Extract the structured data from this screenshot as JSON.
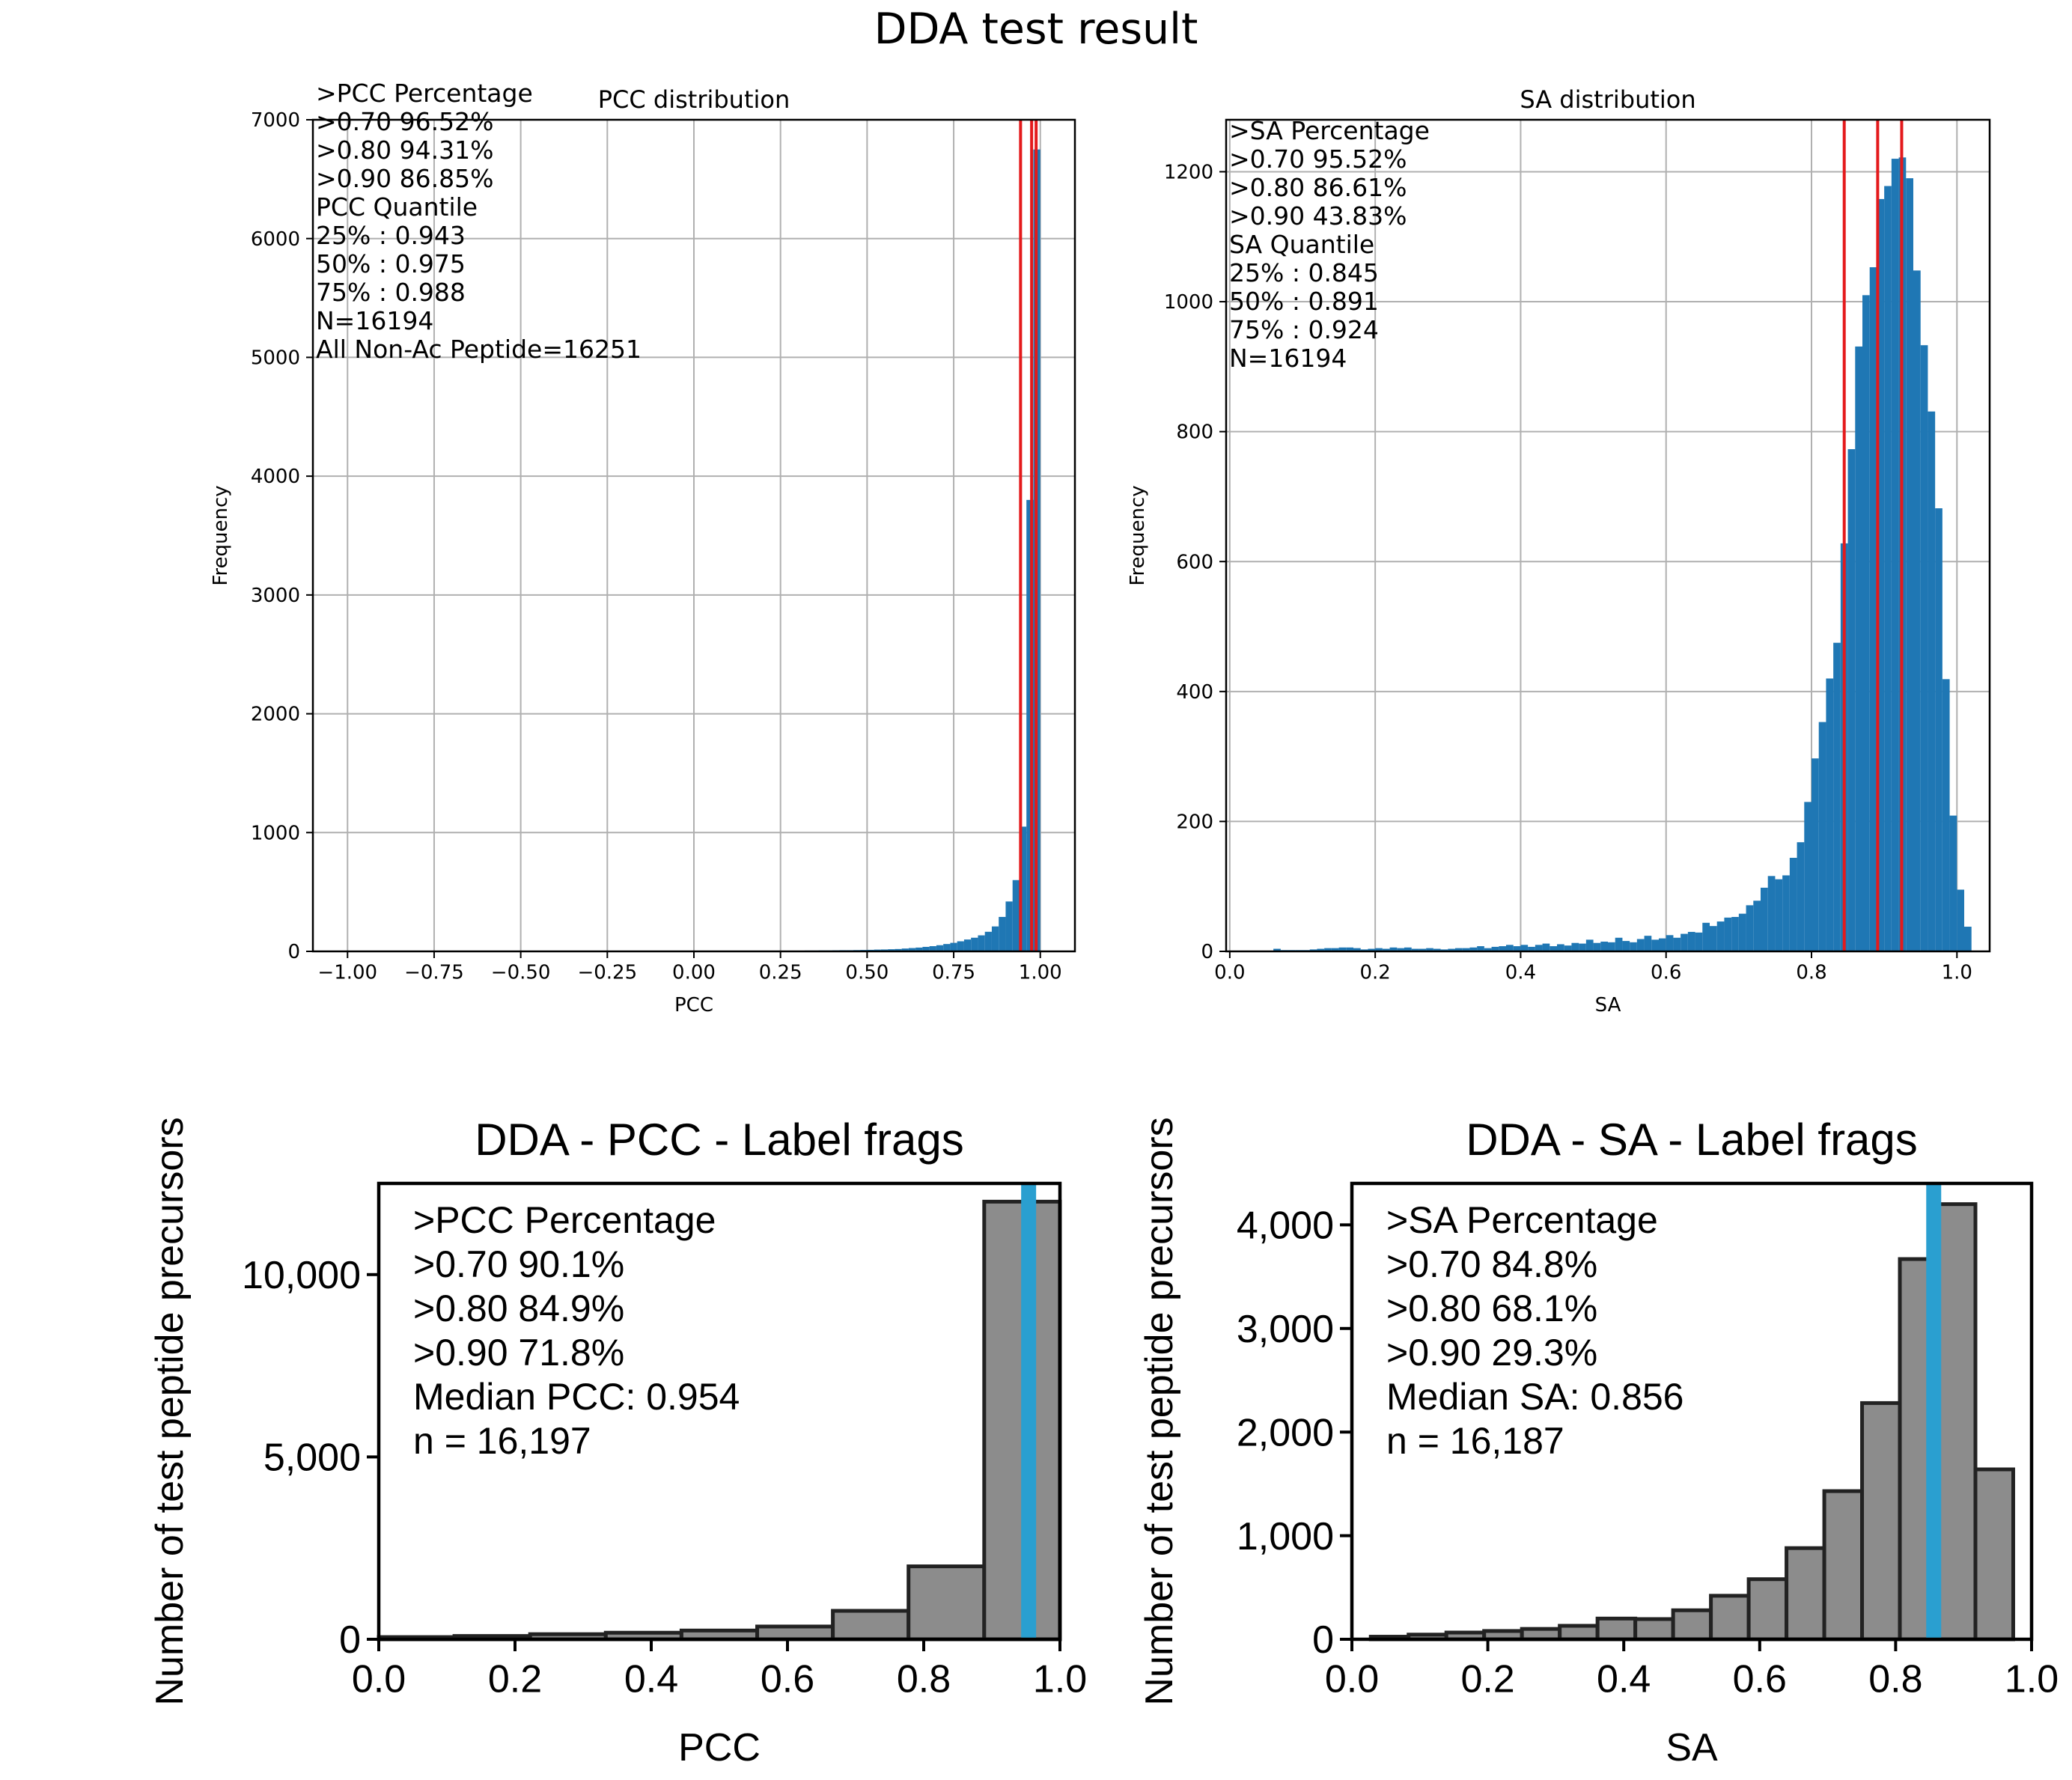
{
  "suptitle": "DDA test result",
  "colors": {
    "hist_fill": "#1f77b4",
    "quantile_line": "#e41a1c",
    "gray_fill": "#8c8c8c",
    "gray_edge": "#222222",
    "median_line": "#2a9fd0",
    "grid": "#b0b0b0"
  },
  "chart_data": [
    {
      "id": "pcc_top",
      "type": "bar",
      "title": "PCC distribution",
      "xlabel": "PCC",
      "ylabel": "Frequency",
      "xlim": [
        -1.1,
        1.1
      ],
      "ylim": [
        0,
        7000
      ],
      "xticks": [
        -1.0,
        -0.75,
        -0.5,
        -0.25,
        0.0,
        0.25,
        0.5,
        0.75,
        1.0
      ],
      "xtick_labels": [
        "−1.00",
        "−0.75",
        "−0.50",
        "−0.25",
        "0.00",
        "0.25",
        "0.50",
        "0.75",
        "1.00"
      ],
      "yticks": [
        0,
        1000,
        2000,
        3000,
        4000,
        5000,
        6000,
        7000
      ],
      "ytick_labels": [
        "0",
        "1000",
        "2000",
        "3000",
        "4000",
        "5000",
        "6000",
        "7000"
      ],
      "grid": true,
      "bins": {
        "start": 0.0,
        "width": 0.02,
        "values": [
          2,
          2,
          2,
          3,
          3,
          3,
          3,
          4,
          4,
          4,
          5,
          5,
          5,
          6,
          6,
          6,
          7,
          7,
          8,
          8,
          9,
          10,
          10,
          11,
          12,
          13,
          15,
          16,
          18,
          20,
          24,
          28,
          32,
          38,
          44,
          52,
          62,
          72,
          85,
          100,
          115,
          135,
          165,
          210,
          290,
          420,
          600,
          1050,
          3800,
          6750
        ]
      },
      "low_tail": {
        "start": -0.3,
        "width": 0.02,
        "values": [
          1,
          1,
          1,
          1,
          1,
          1,
          1,
          1,
          1,
          1,
          1,
          1,
          1,
          1,
          2
        ]
      },
      "quantile_lines": [
        0.943,
        0.975,
        0.988
      ],
      "annotation": [
        ">PCC Percentage",
        ">0.70 96.52%",
        ">0.80 94.31%",
        ">0.90 86.85%",
        "PCC Quantile",
        "25% : 0.943",
        "50% : 0.975",
        "75% : 0.988",
        "N=16194",
        "All Non-Ac Peptide=16251"
      ]
    },
    {
      "id": "sa_top",
      "type": "bar",
      "title": "SA distribution",
      "xlabel": "SA",
      "ylabel": "Frequency",
      "xlim": [
        -0.005,
        1.045
      ],
      "ylim": [
        0,
        1280
      ],
      "xticks": [
        0.0,
        0.2,
        0.4,
        0.6,
        0.8,
        1.0
      ],
      "xtick_labels": [
        "0.0",
        "0.2",
        "0.4",
        "0.6",
        "0.8",
        "1.0"
      ],
      "yticks": [
        0,
        200,
        400,
        600,
        800,
        1000,
        1200
      ],
      "ytick_labels": [
        "0",
        "200",
        "400",
        "600",
        "800",
        "1000",
        "1200"
      ],
      "grid": true,
      "bins": {
        "start": 0.0,
        "width": 0.01,
        "values": [
          0,
          0,
          0,
          0,
          0,
          0,
          4,
          2,
          2,
          2,
          2,
          3,
          4,
          5,
          5,
          6,
          6,
          5,
          3,
          4,
          5,
          4,
          6,
          5,
          6,
          4,
          4,
          5,
          4,
          3,
          4,
          5,
          5,
          6,
          8,
          5,
          7,
          8,
          10,
          8,
          10,
          7,
          10,
          12,
          8,
          11,
          9,
          13,
          12,
          18,
          13,
          15,
          14,
          21,
          16,
          14,
          19,
          24,
          18,
          20,
          25,
          21,
          27,
          30,
          29,
          44,
          39,
          46,
          52,
          53,
          58,
          71,
          78,
          98,
          116,
          111,
          117,
          144,
          168,
          230,
          297,
          353,
          420,
          475,
          628,
          773,
          931,
          1010,
          1053,
          1158,
          1178,
          1220,
          1222,
          1190,
          1048,
          933,
          831,
          682,
          419,
          209,
          95,
          38
        ]
      },
      "quantile_lines": [
        0.845,
        0.891,
        0.924
      ],
      "annotation": [
        ">SA Percentage",
        ">0.70 95.52%",
        ">0.80 86.61%",
        ">0.90 43.83%",
        "SA Quantile",
        "25% : 0.845",
        "50% : 0.891",
        "75% : 0.924",
        "N=16194"
      ]
    },
    {
      "id": "pcc_bottom",
      "type": "bar",
      "title": "DDA - PCC - Label frags",
      "xlabel": "PCC",
      "ylabel": "Number of test peptide precursors",
      "xlim": [
        0.0,
        1.0
      ],
      "ylim": [
        0,
        12500
      ],
      "xticks": [
        0.0,
        0.2,
        0.4,
        0.6,
        0.8,
        1.0
      ],
      "xtick_labels": [
        "0.0",
        "0.2",
        "0.4",
        "0.6",
        "0.8",
        "1.0"
      ],
      "yticks": [
        0,
        5000,
        10000
      ],
      "ytick_labels": [
        "0",
        "5,000",
        "10,000"
      ],
      "grid": false,
      "bins": {
        "start": 0.0,
        "width": 0.1111,
        "values": [
          60,
          90,
          140,
          180,
          240,
          350,
          780,
          2000,
          12000
        ]
      },
      "median_line": 0.954,
      "annotation": [
        ">PCC Percentage",
        ">0.70  90.1%",
        ">0.80  84.9%",
        ">0.90  71.8%",
        "Median PCC: 0.954",
        "n = 16,197"
      ]
    },
    {
      "id": "sa_bottom",
      "type": "bar",
      "title": "DDA - SA - Label frags",
      "xlabel": "SA",
      "ylabel": "Number of test peptide precursors",
      "xlim": [
        0.0,
        1.0
      ],
      "ylim": [
        0,
        4400
      ],
      "xticks": [
        0.0,
        0.2,
        0.4,
        0.6,
        0.8,
        1.0
      ],
      "xtick_labels": [
        "0.0",
        "0.2",
        "0.4",
        "0.6",
        "0.8",
        "1.0"
      ],
      "yticks": [
        0,
        1000,
        2000,
        3000,
        4000
      ],
      "ytick_labels": [
        "0",
        "1,000",
        "2,000",
        "3,000",
        "4,000"
      ],
      "grid": false,
      "bins": {
        "start": 0.0278,
        "width": 0.0556,
        "values": [
          25,
          45,
          65,
          80,
          100,
          130,
          200,
          195,
          280,
          420,
          580,
          880,
          1430,
          2280,
          3670,
          4200,
          1640
        ]
      },
      "median_line": 0.856,
      "annotation": [
        ">SA Percentage",
        ">0.70  84.8%",
        ">0.80  68.1%",
        ">0.90  29.3%",
        "Median SA: 0.856",
        "n = 16,187"
      ]
    }
  ]
}
